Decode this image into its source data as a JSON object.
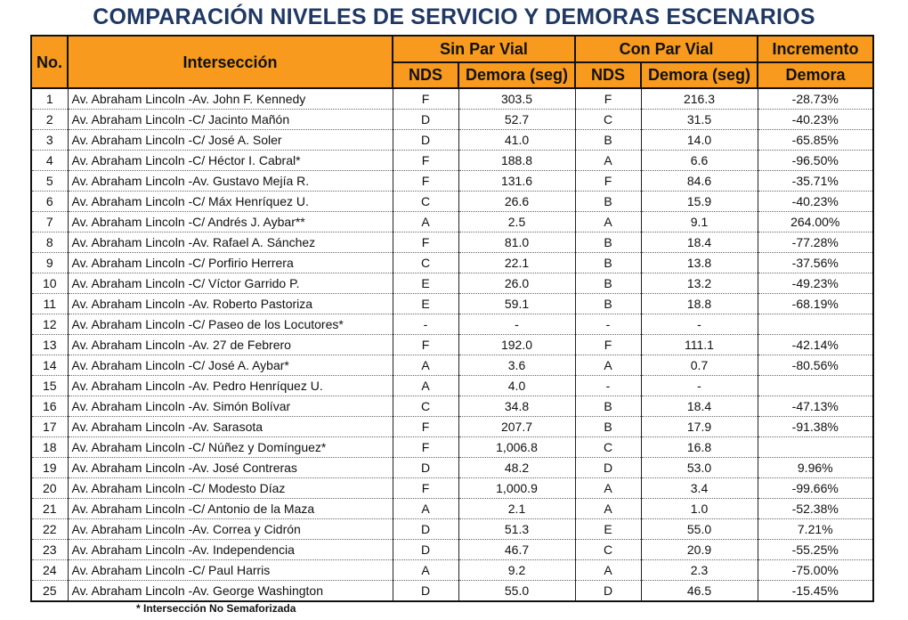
{
  "title": "COMPARACIÓN NIVELES DE SERVICIO Y DEMORAS ESCENARIOS",
  "headers": {
    "no": "No.",
    "interseccion": "Intersección",
    "sin_par_vial": "Sin Par Vial",
    "con_par_vial": "Con Par Vial",
    "incremento": "Incremento",
    "demora_label": "Demora",
    "nds": "NDS",
    "demora_seg": "Demora (seg)"
  },
  "rows": [
    {
      "no": "1",
      "name": "Av. Abraham Lincoln -Av. John F. Kennedy",
      "nds1": "F",
      "dem1": "303.5",
      "nds2": "F",
      "dem2": "216.3",
      "inc": "-28.73%"
    },
    {
      "no": "2",
      "name": "Av. Abraham Lincoln -C/ Jacinto Mañón",
      "nds1": "D",
      "dem1": "52.7",
      "nds2": "C",
      "dem2": "31.5",
      "inc": "-40.23%"
    },
    {
      "no": "3",
      "name": "Av. Abraham Lincoln -C/ José A. Soler",
      "nds1": "D",
      "dem1": "41.0",
      "nds2": "B",
      "dem2": "14.0",
      "inc": "-65.85%"
    },
    {
      "no": "4",
      "name": "Av. Abraham Lincoln -C/ Héctor I. Cabral*",
      "nds1": "F",
      "dem1": "188.8",
      "nds2": "A",
      "dem2": "6.6",
      "inc": "-96.50%"
    },
    {
      "no": "5",
      "name": "Av. Abraham Lincoln -Av. Gustavo Mejía R.",
      "nds1": "F",
      "dem1": "131.6",
      "nds2": "F",
      "dem2": "84.6",
      "inc": "-35.71%"
    },
    {
      "no": "6",
      "name": "Av. Abraham Lincoln -C/ Máx Henríquez U.",
      "nds1": "C",
      "dem1": "26.6",
      "nds2": "B",
      "dem2": "15.9",
      "inc": "-40.23%"
    },
    {
      "no": "7",
      "name": "Av. Abraham Lincoln -C/ Andrés J. Aybar**",
      "nds1": "A",
      "dem1": "2.5",
      "nds2": "A",
      "dem2": "9.1",
      "inc": "264.00%"
    },
    {
      "no": "8",
      "name": "Av. Abraham Lincoln -Av. Rafael A. Sánchez",
      "nds1": "F",
      "dem1": "81.0",
      "nds2": "B",
      "dem2": "18.4",
      "inc": "-77.28%"
    },
    {
      "no": "9",
      "name": "Av. Abraham Lincoln -C/ Porfirio Herrera",
      "nds1": "C",
      "dem1": "22.1",
      "nds2": "B",
      "dem2": "13.8",
      "inc": "-37.56%"
    },
    {
      "no": "10",
      "name": "Av. Abraham Lincoln -C/ Víctor Garrido P.",
      "nds1": "E",
      "dem1": "26.0",
      "nds2": "B",
      "dem2": "13.2",
      "inc": "-49.23%"
    },
    {
      "no": "11",
      "name": "Av. Abraham Lincoln -Av. Roberto Pastoriza",
      "nds1": "E",
      "dem1": "59.1",
      "nds2": "B",
      "dem2": "18.8",
      "inc": "-68.19%"
    },
    {
      "no": "12",
      "name": "Av. Abraham Lincoln -C/ Paseo de los Locutores*",
      "nds1": "-",
      "dem1": "-",
      "nds2": "-",
      "dem2": "-",
      "inc": ""
    },
    {
      "no": "13",
      "name": "Av. Abraham Lincoln -Av. 27 de Febrero",
      "nds1": "F",
      "dem1": "192.0",
      "nds2": "F",
      "dem2": "111.1",
      "inc": "-42.14%"
    },
    {
      "no": "14",
      "name": "Av. Abraham Lincoln -C/ José A. Aybar*",
      "nds1": "A",
      "dem1": "3.6",
      "nds2": "A",
      "dem2": "0.7",
      "inc": "-80.56%"
    },
    {
      "no": "15",
      "name": "Av. Abraham Lincoln -Av. Pedro Henríquez U.",
      "nds1": "A",
      "dem1": "4.0",
      "nds2": "-",
      "dem2": "-",
      "inc": ""
    },
    {
      "no": "16",
      "name": "Av. Abraham Lincoln -Av. Simón Bolívar",
      "nds1": "C",
      "dem1": "34.8",
      "nds2": "B",
      "dem2": "18.4",
      "inc": "-47.13%"
    },
    {
      "no": "17",
      "name": "Av. Abraham Lincoln -Av. Sarasota",
      "nds1": "F",
      "dem1": "207.7",
      "nds2": "B",
      "dem2": "17.9",
      "inc": "-91.38%"
    },
    {
      "no": "18",
      "name": "Av. Abraham Lincoln -C/ Núñez y Domínguez*",
      "nds1": "F",
      "dem1": "1,006.8",
      "nds2": "C",
      "dem2": "16.8",
      "inc": ""
    },
    {
      "no": "19",
      "name": "Av. Abraham Lincoln -Av. José Contreras",
      "nds1": "D",
      "dem1": "48.2",
      "nds2": "D",
      "dem2": "53.0",
      "inc": "9.96%"
    },
    {
      "no": "20",
      "name": "Av. Abraham Lincoln -C/ Modesto Díaz",
      "nds1": "F",
      "dem1": "1,000.9",
      "nds2": "A",
      "dem2": "3.4",
      "inc": "-99.66%"
    },
    {
      "no": "21",
      "name": "Av. Abraham Lincoln -C/ Antonio de la Maza",
      "nds1": "A",
      "dem1": "2.1",
      "nds2": "A",
      "dem2": "1.0",
      "inc": "-52.38%"
    },
    {
      "no": "22",
      "name": "Av. Abraham Lincoln -Av. Correa y Cidrón",
      "nds1": "D",
      "dem1": "51.3",
      "nds2": "E",
      "dem2": "55.0",
      "inc": "7.21%"
    },
    {
      "no": "23",
      "name": "Av. Abraham Lincoln -Av. Independencia",
      "nds1": "D",
      "dem1": "46.7",
      "nds2": "C",
      "dem2": "20.9",
      "inc": "-55.25%"
    },
    {
      "no": "24",
      "name": "Av. Abraham Lincoln -C/ Paul Harris",
      "nds1": "A",
      "dem1": "9.2",
      "nds2": "A",
      "dem2": "2.3",
      "inc": "-75.00%"
    },
    {
      "no": "25",
      "name": "Av. Abraham Lincoln -Av. George Washington",
      "nds1": "D",
      "dem1": "55.0",
      "nds2": "D",
      "dem2": "46.5",
      "inc": "-15.45%"
    }
  ],
  "footnote": "* Intersección No Semaforizada",
  "colors": {
    "header_bg": "#f79a1d",
    "title": "#1f3864"
  }
}
